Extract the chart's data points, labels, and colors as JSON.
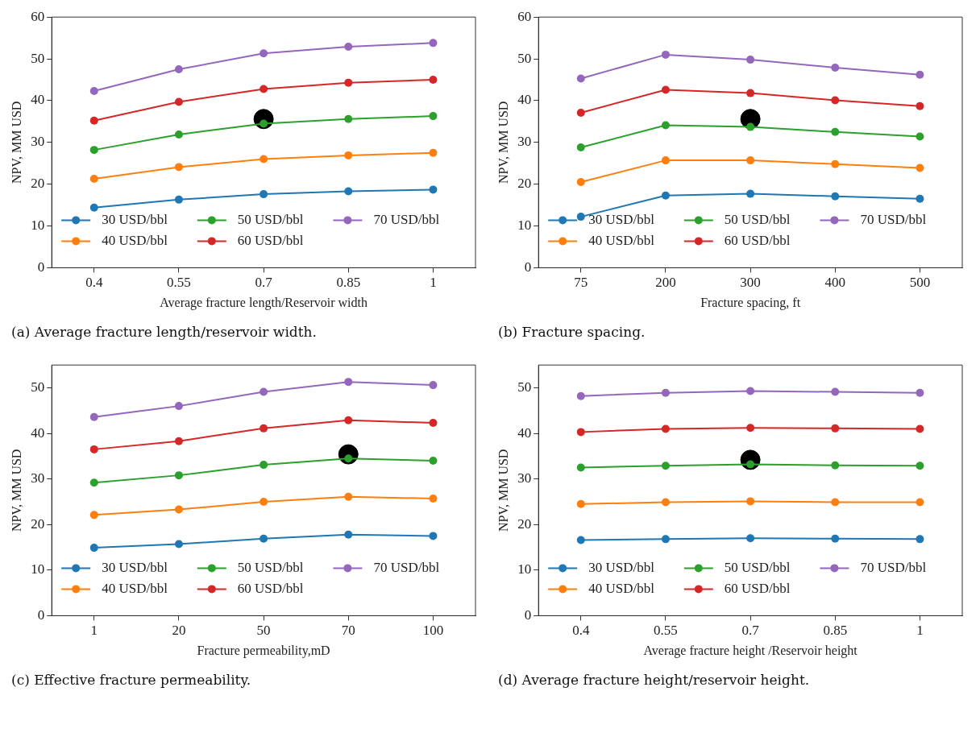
{
  "chart_data": [
    {
      "type": "line",
      "xlabel": "Average fracture length/Reservoir width",
      "ylabel": "NPV, MM USD",
      "categories": [
        "0.4",
        "0.55",
        "0.7",
        "0.85",
        "1"
      ],
      "ylim": [
        0,
        60
      ],
      "yticks": [
        0,
        10,
        20,
        30,
        40,
        50,
        60
      ],
      "grid": false,
      "legend": "bottom",
      "marker": "circle",
      "line_style": "solid",
      "annotations": [
        "(a) Average fracture length/reservoir width."
      ],
      "series": [
        {
          "name": "30 USD/bbl",
          "color": "#1f77b4",
          "values": [
            14.4,
            16.3,
            17.6,
            18.3,
            18.7
          ]
        },
        {
          "name": "40 USD/bbl",
          "color": "#ff7f0e",
          "values": [
            21.3,
            24.1,
            26.0,
            26.9,
            27.5
          ]
        },
        {
          "name": "50 USD/bbl",
          "color": "#2ca02c",
          "values": [
            28.2,
            31.9,
            34.5,
            35.6,
            36.3
          ]
        },
        {
          "name": "60 USD/bbl",
          "color": "#d62728",
          "values": [
            35.2,
            39.7,
            42.8,
            44.3,
            45.0
          ]
        },
        {
          "name": "70 USD/bbl",
          "color": "#9467bd",
          "values": [
            42.3,
            47.5,
            51.3,
            52.9,
            53.8
          ]
        },
        {
          "type": "scatter",
          "color": "#000000",
          "x": [
            "0.7"
          ],
          "values": [
            35.6
          ]
        }
      ]
    },
    {
      "type": "line",
      "xlabel": "Fracture spacing, ft",
      "ylabel": "NPV, MM USD",
      "categories": [
        "75",
        "200",
        "300",
        "400",
        "500"
      ],
      "ylim": [
        0,
        60
      ],
      "yticks": [
        0,
        10,
        20,
        30,
        40,
        50,
        60
      ],
      "grid": false,
      "legend": "bottom",
      "marker": "circle",
      "line_style": "solid",
      "annotations": [
        "(b) Fracture spacing."
      ],
      "series": [
        {
          "name": "30 USD/bbl",
          "color": "#1f77b4",
          "values": [
            12.2,
            17.3,
            17.7,
            17.1,
            16.5
          ]
        },
        {
          "name": "40 USD/bbl",
          "color": "#ff7f0e",
          "values": [
            20.5,
            25.7,
            25.7,
            24.8,
            23.9
          ]
        },
        {
          "name": "50 USD/bbl",
          "color": "#2ca02c",
          "values": [
            28.8,
            34.1,
            33.7,
            32.5,
            31.4
          ]
        },
        {
          "name": "60 USD/bbl",
          "color": "#d62728",
          "values": [
            37.1,
            42.6,
            41.8,
            40.1,
            38.7
          ]
        },
        {
          "name": "70 USD/bbl",
          "color": "#9467bd",
          "values": [
            45.3,
            51.0,
            49.8,
            47.9,
            46.2
          ]
        },
        {
          "type": "scatter",
          "color": "#000000",
          "x": [
            "300"
          ],
          "values": [
            35.6
          ]
        }
      ]
    },
    {
      "type": "line",
      "xlabel": "Fracture permeability,mD",
      "ylabel": "NPV, MM USD",
      "categories": [
        "1",
        "20",
        "50",
        "70",
        "100"
      ],
      "ylim": [
        0,
        55
      ],
      "yticks": [
        0,
        10,
        20,
        30,
        40,
        50
      ],
      "grid": false,
      "legend": "bottom",
      "marker": "circle",
      "line_style": "solid",
      "annotations": [
        "(c) Effective fracture permeability."
      ],
      "series": [
        {
          "name": "30 USD/bbl",
          "color": "#1f77b4",
          "values": [
            14.9,
            15.7,
            16.9,
            17.8,
            17.5
          ]
        },
        {
          "name": "40 USD/bbl",
          "color": "#ff7f0e",
          "values": [
            22.1,
            23.3,
            25.0,
            26.1,
            25.7
          ]
        },
        {
          "name": "50 USD/bbl",
          "color": "#2ca02c",
          "values": [
            29.2,
            30.8,
            33.1,
            34.5,
            34.0
          ]
        },
        {
          "name": "60 USD/bbl",
          "color": "#d62728",
          "values": [
            36.5,
            38.3,
            41.1,
            42.9,
            42.3
          ]
        },
        {
          "name": "70 USD/bbl",
          "color": "#9467bd",
          "values": [
            43.6,
            46.0,
            49.1,
            51.3,
            50.6
          ]
        },
        {
          "type": "scatter",
          "color": "#000000",
          "x": [
            "70"
          ],
          "values": [
            35.4
          ]
        }
      ]
    },
    {
      "type": "line",
      "xlabel": "Average fracture height /Reservoir height",
      "ylabel": "NPV, MM USD",
      "categories": [
        "0.4",
        "0.55",
        "0.7",
        "0.85",
        "1"
      ],
      "ylim": [
        0,
        55
      ],
      "yticks": [
        0,
        10,
        20,
        30,
        40,
        50
      ],
      "grid": false,
      "legend": "bottom",
      "marker": "circle",
      "line_style": "solid",
      "annotations": [
        "(d) Average fracture height/reservoir height."
      ],
      "series": [
        {
          "name": "30 USD/bbl",
          "color": "#1f77b4",
          "values": [
            16.6,
            16.8,
            17.0,
            16.9,
            16.8
          ]
        },
        {
          "name": "40 USD/bbl",
          "color": "#ff7f0e",
          "values": [
            24.5,
            24.9,
            25.1,
            24.9,
            24.9
          ]
        },
        {
          "name": "50 USD/bbl",
          "color": "#2ca02c",
          "values": [
            32.5,
            32.9,
            33.2,
            33.0,
            32.9
          ]
        },
        {
          "name": "60 USD/bbl",
          "color": "#d62728",
          "values": [
            40.3,
            41.0,
            41.2,
            41.1,
            41.0
          ]
        },
        {
          "name": "70 USD/bbl",
          "color": "#9467bd",
          "values": [
            48.2,
            48.9,
            49.3,
            49.1,
            48.9
          ]
        },
        {
          "type": "scatter",
          "color": "#000000",
          "x": [
            "0.7"
          ],
          "values": [
            34.2
          ]
        }
      ]
    }
  ]
}
